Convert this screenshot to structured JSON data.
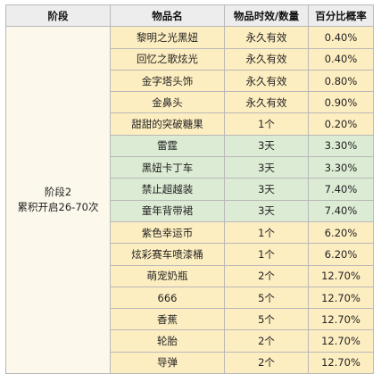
{
  "headers": [
    "阶段",
    "物品名",
    "物品时效/数量",
    "百分比概率"
  ],
  "stage": {
    "line1": "阶段2",
    "line2": "累积开启26-70次"
  },
  "rows": [
    {
      "name": "黎明之光黑妞",
      "duration": "永久有效",
      "prob": "0.40%",
      "tint": "yellow"
    },
    {
      "name": "回忆之歌炫光",
      "duration": "永久有效",
      "prob": "0.40%",
      "tint": "yellow"
    },
    {
      "name": "金字塔头饰",
      "duration": "永久有效",
      "prob": "0.80%",
      "tint": "yellow"
    },
    {
      "name": "金鼻头",
      "duration": "永久有效",
      "prob": "0.90%",
      "tint": "yellow"
    },
    {
      "name": "甜甜的突破糖果",
      "duration": "1个",
      "prob": "0.20%",
      "tint": "yellow"
    },
    {
      "name": "雷霆",
      "duration": "3天",
      "prob": "3.30%",
      "tint": "green"
    },
    {
      "name": "黑妞卡丁车",
      "duration": "3天",
      "prob": "3.30%",
      "tint": "green"
    },
    {
      "name": "禁止超越装",
      "duration": "3天",
      "prob": "7.40%",
      "tint": "green"
    },
    {
      "name": "童年背带裙",
      "duration": "3天",
      "prob": "7.40%",
      "tint": "green"
    },
    {
      "name": "紫色幸运币",
      "duration": "1个",
      "prob": "6.20%",
      "tint": "yellow"
    },
    {
      "name": "炫彩赛车喷漆桶",
      "duration": "1个",
      "prob": "6.20%",
      "tint": "yellow"
    },
    {
      "name": "萌宠奶瓶",
      "duration": "2个",
      "prob": "12.70%",
      "tint": "yellow"
    },
    {
      "name": "666",
      "duration": "5个",
      "prob": "12.70%",
      "tint": "yellow"
    },
    {
      "name": "香蕉",
      "duration": "5个",
      "prob": "12.70%",
      "tint": "yellow"
    },
    {
      "name": "轮胎",
      "duration": "2个",
      "prob": "12.70%",
      "tint": "yellow"
    },
    {
      "name": "导弹",
      "duration": "2个",
      "prob": "12.70%",
      "tint": "yellow"
    }
  ]
}
